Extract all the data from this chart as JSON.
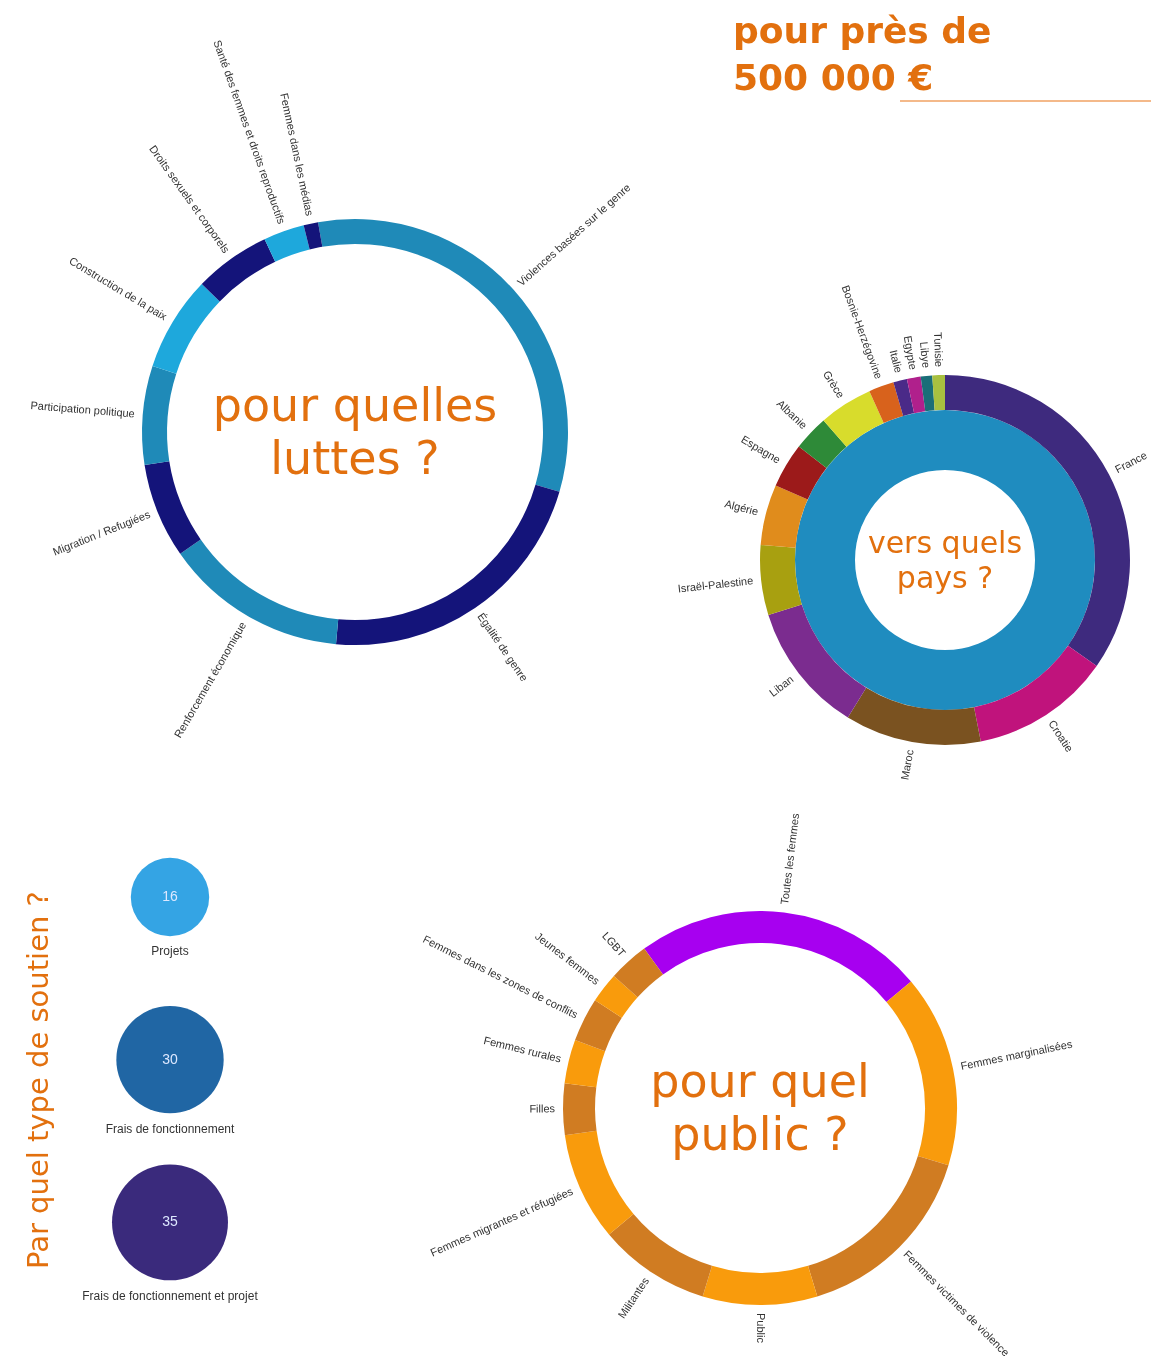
{
  "chart_data": [
    {
      "type": "donut",
      "title": "pour quelles luttes ?",
      "categories": [
        "Violences basées sur le genre",
        "Égalité de genre",
        "Renforcement économique",
        "Migration / Refugiées",
        "Participation politique",
        "Construction de la paix",
        "Droits sexuels et corporels",
        "Santé des femmes et droits reproductifs",
        "Femmes dans les médias"
      ],
      "values": [
        32.3,
        21.9,
        13.9,
        7.2,
        7.5,
        7.2,
        5.8,
        3.1,
        1.1
      ],
      "colors": [
        "#1f8ab8",
        "#14147a",
        "#1f8ab8",
        "#14147a",
        "#1f8ab8",
        "#1ea8dc",
        "#14147a",
        "#1ea8dc",
        "#14147a"
      ],
      "annotations": [
        "pour près de 500 000 €"
      ]
    },
    {
      "type": "donut",
      "title": "vers quels pays ?",
      "categories": [
        "France",
        "Croatie",
        "Maroc",
        "Liban",
        "Israël-Palestine",
        "Algérie",
        "Espagne",
        "Albanie",
        "Grèce",
        "Bosnie-Herzégovine",
        "Italie",
        "Egypte",
        "Libye",
        "Tunisie"
      ],
      "values": [
        34.7,
        12.2,
        11.9,
        11.4,
        6.1,
        5.3,
        3.9,
        3.1,
        4.7,
        2.2,
        1.2,
        1.2,
        1.0,
        1.1
      ],
      "colors": [
        "#3e2a7e",
        "#c0137c",
        "#7a5220",
        "#7b2c8f",
        "#a8a010",
        "#e08c1c",
        "#9c1a1a",
        "#2e8a38",
        "#d8dc2c",
        "#d8621c",
        "#4a2a88",
        "#b0208c",
        "#1a6e78",
        "#a8c040"
      ]
    },
    {
      "type": "donut",
      "title": "pour quel public ?",
      "categories": [
        "Toutes les femmes",
        "Femmes marginalisées",
        "Femmes victimes de violence",
        "Public",
        "Militantes",
        "Femmes migrantes et réfugiées",
        "Filles",
        "Femmes rurales",
        "Femmes dans les zones de conflits",
        "Jeunes femmes",
        "LGBT"
      ],
      "values": [
        23.9,
        15.8,
        15.6,
        9.4,
        9.2,
        8.9,
        4.2,
        3.6,
        3.6,
        2.5,
        3.3
      ],
      "colors": [
        "#a700f0",
        "#f99b0c",
        "#d07c22",
        "#f99b0c",
        "#d07c22",
        "#f99b0c",
        "#d07c22",
        "#f99b0c",
        "#d07c22",
        "#f99b0c",
        "#d07c22"
      ]
    },
    {
      "type": "other",
      "title": "Par quel type de soutien ?",
      "categories": [
        "Projets",
        "Frais de fonctionnement",
        "Frais de fonctionnement et projet"
      ],
      "values": [
        16,
        30,
        35
      ],
      "colors": [
        "#34a4e4",
        "#2066a4",
        "#3a2a7c"
      ],
      "data_labels": true
    }
  ]
}
